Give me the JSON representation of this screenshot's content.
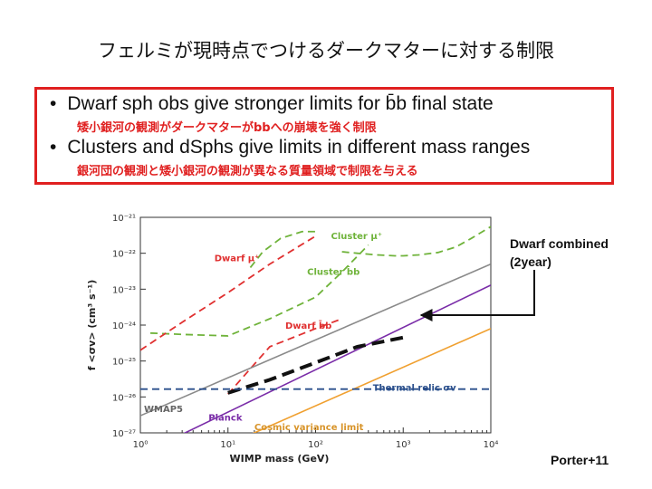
{
  "slide": {
    "title": "フェルミが現時点でつけるダークマターに対する制限",
    "bullets": [
      {
        "text": "Dwarf sph obs give stronger limits for b̄b final state",
        "note": "矮小銀河の観測がダークマターがbbへの崩壊を強く制限"
      },
      {
        "text": "Clusters and dSphs  give limits in different mass ranges",
        "note": "銀河団の観測と矮小銀河の観測が異なる質量領域で制限を与える"
      }
    ],
    "annotation": "Dwarf combined (2year)",
    "credit": "Porter+11"
  },
  "chart_data": {
    "type": "line",
    "xlabel": "WIMP mass (GeV)",
    "ylabel": "f <σv> (cm³ s⁻¹)",
    "xscale": "log",
    "yscale": "log",
    "xlim": [
      1,
      10000
    ],
    "ylim": [
      1e-27,
      1e-21
    ],
    "x_tick_labels": [
      "10⁰",
      "10¹",
      "10²",
      "10³",
      "10⁴"
    ],
    "y_tick_labels": [
      "10⁻²¹",
      "10⁻²²",
      "10⁻²³",
      "10⁻²⁴",
      "10⁻²⁵",
      "10⁻²⁶",
      "10⁻²⁷"
    ],
    "series": [
      {
        "name": "Cluster μ⁺",
        "color": "#6fb33a",
        "style": "dashed",
        "x": [
          18,
          25,
          40,
          70,
          100
        ],
        "y": [
          4e-23,
          1.1e-22,
          2.6e-22,
          4e-22,
          4e-22
        ]
      },
      {
        "name": "Cluster μ⁺",
        "color": "#6fb33a",
        "style": "dashed",
        "x": [
          200,
          300,
          500,
          800,
          1000,
          1500,
          2500,
          4000,
          6000,
          10000
        ],
        "y": [
          1.1e-22,
          1e-22,
          9e-23,
          8.5e-23,
          8.5e-23,
          9e-23,
          1.05e-22,
          1.5e-22,
          2.6e-22,
          5.5e-22
        ]
      },
      {
        "name": "Cluster b̄b",
        "color": "#6fb33a",
        "style": "dashed",
        "x": [
          1.3,
          3,
          10,
          30,
          100,
          200,
          400
        ],
        "y": [
          6e-25,
          5.5e-25,
          5e-25,
          1.5e-24,
          6e-24,
          3e-23,
          1.7e-22
        ]
      },
      {
        "name": "Dwarf μ⁺",
        "color": "#e03030",
        "style": "dashed",
        "x": [
          1,
          3,
          10,
          30,
          100
        ],
        "y": [
          2e-25,
          1.2e-24,
          8e-24,
          5e-23,
          3e-22
        ]
      },
      {
        "name": "Dwarf b̄b",
        "color": "#e03030",
        "style": "dashed",
        "x": [
          10,
          30,
          100,
          200
        ],
        "y": [
          1.2e-26,
          2.5e-25,
          8e-25,
          1.5e-24
        ]
      },
      {
        "name": "",
        "color": "#8a8a8a",
        "style": "solid",
        "x": [
          1,
          10000
        ],
        "y": [
          3e-27,
          5e-23
        ]
      },
      {
        "name": "",
        "color": "#7a2ca8",
        "style": "solid",
        "x": [
          1,
          10000
        ],
        "y": [
          2.5e-28,
          1.3e-23
        ]
      },
      {
        "name": "",
        "color": "#f0a030",
        "style": "solid",
        "x": [
          1,
          10000
        ],
        "y": [
          4e-29,
          8e-25
        ]
      },
      {
        "name": "",
        "color": "#111111",
        "style": "dashed-thick",
        "x": [
          10,
          30,
          100,
          300,
          1000
        ],
        "y": [
          1.3e-26,
          3e-26,
          9e-26,
          2.5e-25,
          4.5e-25
        ]
      },
      {
        "name": "",
        "color": "#2a4f8c",
        "style": "dashed",
        "x": [
          1,
          10000
        ],
        "y": [
          1.65e-26,
          1.65e-26
        ]
      }
    ],
    "labels": [
      {
        "text": "Cluster μ⁺",
        "x": 150,
        "y": 2.5e-22,
        "color": "#6fb33a"
      },
      {
        "text": "Dwarf μ⁺",
        "x": 7,
        "y": 6e-23,
        "color": "#e03030"
      },
      {
        "text": "Cluster b̄b",
        "x": 80,
        "y": 2.5e-23,
        "color": "#6fb33a"
      },
      {
        "text": "Dwarf b̄b",
        "x": 45,
        "y": 8e-25,
        "color": "#e03030"
      },
      {
        "text": "Thermal relic σv",
        "x": 450,
        "y": 1.5e-26,
        "color": "#2a4f8c"
      },
      {
        "text": "WMAP5",
        "x": 1.1,
        "y": 3.8e-27,
        "color": "#666666"
      },
      {
        "text": "Planck",
        "x": 6,
        "y": 2.2e-27,
        "color": "#7a2ca8"
      },
      {
        "text": "Cosmic variance limit",
        "x": 20,
        "y": 1.2e-27,
        "color": "#d8942a"
      }
    ]
  }
}
